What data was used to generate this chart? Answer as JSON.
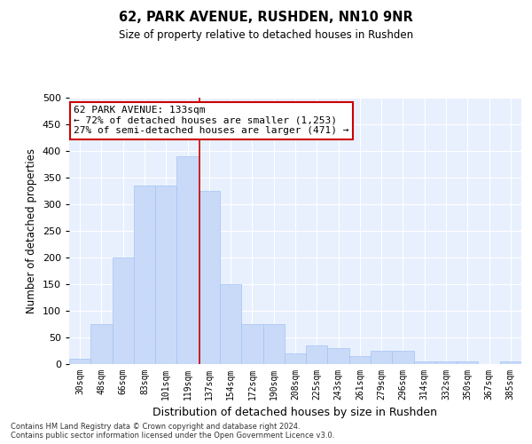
{
  "title": "62, PARK AVENUE, RUSHDEN, NN10 9NR",
  "subtitle": "Size of property relative to detached houses in Rushden",
  "xlabel": "Distribution of detached houses by size in Rushden",
  "ylabel": "Number of detached properties",
  "bar_color": "#c9daf8",
  "bar_edge_color": "#a4c2f4",
  "background_color": "#e8f0fe",
  "categories": [
    "30sqm",
    "48sqm",
    "66sqm",
    "83sqm",
    "101sqm",
    "119sqm",
    "137sqm",
    "154sqm",
    "172sqm",
    "190sqm",
    "208sqm",
    "225sqm",
    "243sqm",
    "261sqm",
    "279sqm",
    "296sqm",
    "314sqm",
    "332sqm",
    "350sqm",
    "367sqm",
    "385sqm"
  ],
  "values": [
    10,
    75,
    200,
    335,
    335,
    390,
    325,
    150,
    75,
    75,
    20,
    35,
    30,
    15,
    25,
    25,
    5,
    5,
    5,
    0,
    5
  ],
  "ylim": [
    0,
    500
  ],
  "yticks": [
    0,
    50,
    100,
    150,
    200,
    250,
    300,
    350,
    400,
    450,
    500
  ],
  "property_line_x": 5.55,
  "annotation_text": "62 PARK AVENUE: 133sqm\n← 72% of detached houses are smaller (1,253)\n27% of semi-detached houses are larger (471) →",
  "annotation_box_color": "#ffffff",
  "annotation_box_edge": "#cc0000",
  "footnote1": "Contains HM Land Registry data © Crown copyright and database right 2024.",
  "footnote2": "Contains public sector information licensed under the Open Government Licence v3.0."
}
